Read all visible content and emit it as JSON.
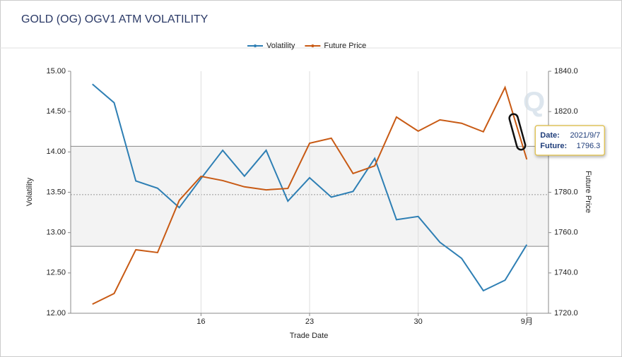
{
  "chart_data": {
    "type": "line",
    "title": "GOLD (OG) OGV1 ATM VOLATILITY",
    "x_label": "Trade Date",
    "y_label": "Volatility",
    "y2_label": "Future Price",
    "categories": [
      null,
      null,
      null,
      null,
      null,
      "16",
      null,
      null,
      null,
      null,
      "23",
      null,
      null,
      null,
      null,
      "30",
      null,
      null,
      null,
      null,
      "9月"
    ],
    "series": [
      {
        "name": "Volatility",
        "color": "#2e7fb4",
        "values": [
          14.84,
          14.61,
          13.64,
          13.55,
          13.31,
          13.67,
          14.02,
          13.7,
          14.02,
          13.39,
          13.68,
          13.44,
          13.51,
          13.92,
          13.16,
          13.2,
          12.88,
          12.68,
          12.28,
          12.41,
          12.85
        ]
      },
      {
        "name": "Future Price",
        "color": "#c85a14",
        "axis": "y2",
        "values": [
          1724.5,
          1729.8,
          1751.5,
          1750.1,
          1776.0,
          1787.9,
          1785.8,
          1782.7,
          1781.2,
          1781.9,
          1804.3,
          1806.8,
          1789.3,
          1793.1,
          1817.3,
          1810.3,
          1815.9,
          1814.2,
          1810.0,
          1832.0,
          1796.3
        ]
      }
    ],
    "ylim": [
      12,
      15
    ],
    "yticks": [
      {
        "value": 12,
        "label": "12.00"
      },
      {
        "value": 12.5,
        "label": "12.50"
      },
      {
        "value": 13,
        "label": "13.00"
      },
      {
        "value": 13.5,
        "label": "13.50"
      },
      {
        "value": 14,
        "label": "14.00"
      },
      {
        "value": 14.5,
        "label": "14.50"
      },
      {
        "value": 15,
        "label": "15.00"
      }
    ],
    "y2lim": [
      1720,
      1840
    ],
    "y2ticks": [
      {
        "value": 1720,
        "label": "1720.0"
      },
      {
        "value": 1740,
        "label": "1740.0"
      },
      {
        "value": 1760,
        "label": "1760.0"
      },
      {
        "value": 1780,
        "label": "1780.0"
      },
      {
        "value": 1800,
        "label": "1800.0"
      },
      {
        "value": 1820,
        "label": "1820.0"
      },
      {
        "value": 1840,
        "label": "1840.0"
      }
    ],
    "band": {
      "low": 12.83,
      "mean": 13.47,
      "high": 14.07
    },
    "legend": "top",
    "tooltip": {
      "date_label": "Date:",
      "date": "2021/9/7",
      "value_label": "Future:",
      "series": 1,
      "index": 20
    }
  }
}
